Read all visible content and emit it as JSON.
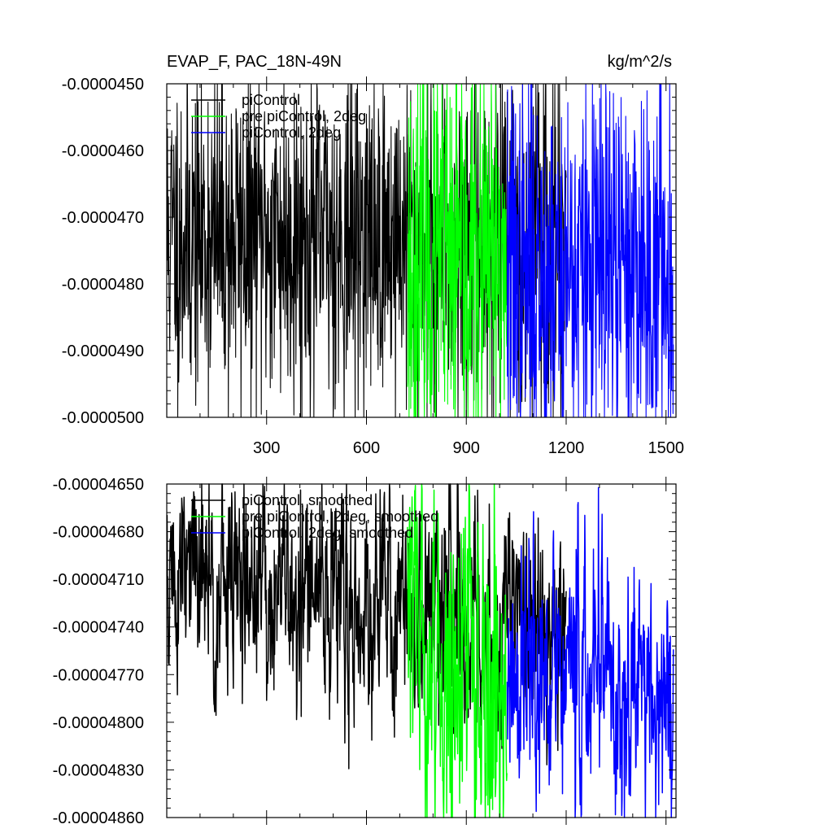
{
  "chart_data": [
    {
      "type": "line",
      "title": "EVAP_F, PAC_18N-49N",
      "units": "kg/m^2/s",
      "ylim": [
        -5e-05,
        -4.5e-05
      ],
      "xlim": [
        0,
        1530
      ],
      "y_ticks": [
        "-0.0000450",
        "-0.0000460",
        "-0.0000470",
        "-0.0000480",
        "-0.0000490",
        "-0.0000500"
      ],
      "y_tick_values": [
        -4.5e-05,
        -4.6e-05,
        -4.7e-05,
        -4.8e-05,
        -4.9e-05,
        -5e-05
      ],
      "x_ticks": [
        "300",
        "600",
        "900",
        "1200",
        "1500"
      ],
      "x_tick_values": [
        300,
        600,
        900,
        1200,
        1500
      ],
      "legend_position": "top-left",
      "series": [
        {
          "name": "piControl",
          "color": "#000000",
          "x_range": [
            1,
            1200
          ],
          "mean": -4.73e-05,
          "amplitude": 2.8e-06,
          "seed": 11
        },
        {
          "name": "pre piControl, 2deg",
          "color": "#00ff00",
          "x_range": [
            723,
            1022
          ],
          "mean": -4.78e-05,
          "amplitude": 3.5e-06,
          "seed": 23
        },
        {
          "name": "piControl, 2deg",
          "color": "#0000ff",
          "x_range": [
            1023,
            1522
          ],
          "mean": -4.78e-05,
          "amplitude": 3.2e-06,
          "seed": 37
        }
      ]
    },
    {
      "type": "line",
      "title": "",
      "ylim": [
        -4.86e-05,
        -4.65e-05
      ],
      "xlim": [
        0,
        1530
      ],
      "y_ticks": [
        "-0.00004650",
        "-0.00004680",
        "-0.00004710",
        "-0.00004740",
        "-0.00004770",
        "-0.00004800",
        "-0.00004830",
        "-0.00004860"
      ],
      "y_tick_values": [
        -4.65e-05,
        -4.68e-05,
        -4.71e-05,
        -4.74e-05,
        -4.77e-05,
        -4.8e-05,
        -4.83e-05,
        -4.86e-05
      ],
      "x_ticks": [],
      "x_tick_values": [
        300,
        600,
        900,
        1200,
        1500
      ],
      "legend_position": "top-left",
      "series": [
        {
          "name": "piControl, smoothed",
          "color": "#000000",
          "x_range": [
            1,
            1200
          ],
          "start": -4.71e-05,
          "end": -4.74e-05,
          "amplitude": 1.2e-06,
          "seed": 51
        },
        {
          "name": "pre piControl, 2deg, smoothed",
          "color": "#00ff00",
          "x_range": [
            723,
            1022
          ],
          "start": -4.75e-05,
          "end": -4.78e-05,
          "amplitude": 1.8e-06,
          "seed": 63
        },
        {
          "name": "piControl, 2deg, smoothed",
          "color": "#0000ff",
          "x_range": [
            1023,
            1522
          ],
          "start": -4.77e-05,
          "end": -4.78e-05,
          "amplitude": 1.4e-06,
          "seed": 77
        }
      ]
    }
  ]
}
